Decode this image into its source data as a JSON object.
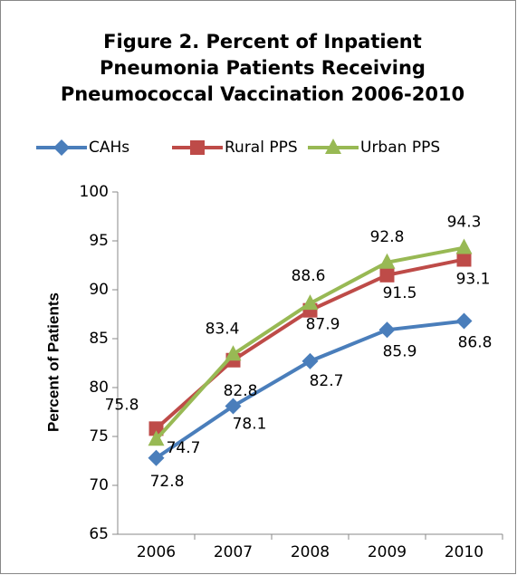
{
  "chart_data": {
    "type": "line",
    "title": [
      "Figure  2. Percent of Inpatient",
      "Pneumonia Patients Receiving",
      "Pneumococcal Vaccination 2006-2010"
    ],
    "y_label": "Percent of Patients",
    "categories": [
      "2006",
      "2007",
      "2008",
      "2009",
      "2010"
    ],
    "series": [
      {
        "name": "CAHs",
        "color": "#4a7ebb",
        "marker": "diamond",
        "values": [
          72.8,
          78.1,
          82.7,
          85.9,
          86.8
        ]
      },
      {
        "name": "Rural PPS",
        "color": "#be4b48",
        "marker": "square",
        "values": [
          75.8,
          82.8,
          87.9,
          91.5,
          93.1
        ]
      },
      {
        "name": "Urban PPS",
        "color": "#98b954",
        "marker": "triangle",
        "values": [
          74.7,
          83.4,
          88.6,
          92.8,
          94.3
        ]
      }
    ],
    "ylim": [
      65,
      100
    ],
    "yticks": [
      65,
      70,
      75,
      80,
      85,
      90,
      95,
      100
    ],
    "legend": "top"
  }
}
